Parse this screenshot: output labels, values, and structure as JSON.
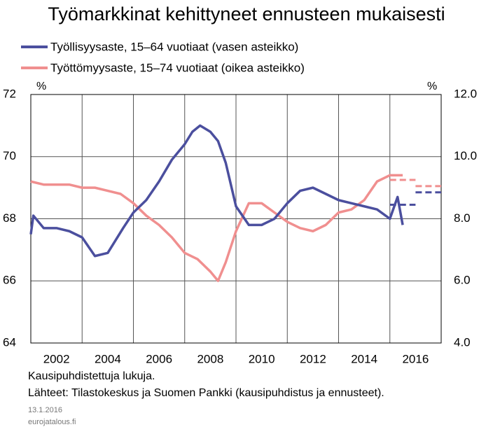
{
  "chart_data": {
    "type": "line",
    "title": "Työmarkkinat kehittyneet ennusteen mukaisesti",
    "y_unit": "%",
    "y2_unit": "%",
    "note": "Kausipuhdistettuja lukuja.",
    "source": "Lähteet:  Tilastokeskus ja Suomen Pankki (kausipuhdistus ja ennusteet).",
    "date": "13.1.2016",
    "site": "eurojatalous.fi",
    "xlim": [
      2001,
      2017
    ],
    "xticks": [
      2002,
      2004,
      2006,
      2008,
      2010,
      2012,
      2014,
      2016
    ],
    "xgrid": [
      2003,
      2005,
      2007,
      2009,
      2011,
      2013,
      2015
    ],
    "ylim": [
      64,
      72
    ],
    "yticks": [
      64,
      66,
      68,
      70,
      72
    ],
    "y2lim": [
      4,
      12
    ],
    "y2ticks": [
      {
        "value": 4,
        "label": "4.0"
      },
      {
        "value": 6,
        "label": "6.0"
      },
      {
        "value": 8,
        "label": "8.0"
      },
      {
        "value": 10,
        "label": "10.0"
      },
      {
        "value": 12,
        "label": "12.0"
      }
    ],
    "series": [
      {
        "name": "Työllisyysaste, 15–64 vuotiaat (vasen asteikko)",
        "color": "#4b4f9e",
        "x": [
          2001.0,
          2001.1,
          2001.5,
          2002.0,
          2002.5,
          2003.0,
          2003.5,
          2004.0,
          2004.3,
          2004.6,
          2005.0,
          2005.5,
          2006.0,
          2006.5,
          2007.0,
          2007.3,
          2007.6,
          2008.0,
          2008.3,
          2008.6,
          2009.0,
          2009.5,
          2010.0,
          2010.5,
          2011.0,
          2011.5,
          2012.0,
          2012.5,
          2013.0,
          2013.5,
          2014.0,
          2014.5,
          2015.0,
          2015.3,
          2015.5
        ],
        "values": [
          67.5,
          68.1,
          67.7,
          67.7,
          67.6,
          67.4,
          66.8,
          66.9,
          67.3,
          67.7,
          68.2,
          68.6,
          69.2,
          69.9,
          70.4,
          70.8,
          71.0,
          70.8,
          70.5,
          69.8,
          68.4,
          67.8,
          67.8,
          68.0,
          68.5,
          68.9,
          69.0,
          68.8,
          68.6,
          68.5,
          68.4,
          68.3,
          68.0,
          68.7,
          67.8
        ],
        "forecast_x": [
          2015,
          2016
        ],
        "forecast_values": [
          68.45,
          68.85
        ]
      },
      {
        "name": "Työttömyysaste, 15–74 vuotiaat (oikea asteikko)",
        "color": "#f08f8f",
        "axis": "y2",
        "x": [
          2001.0,
          2001.5,
          2002.0,
          2002.5,
          2003.0,
          2003.5,
          2004.0,
          2004.5,
          2005.0,
          2005.5,
          2006.0,
          2006.5,
          2007.0,
          2007.5,
          2008.0,
          2008.3,
          2008.6,
          2009.0,
          2009.5,
          2010.0,
          2010.5,
          2011.0,
          2011.5,
          2012.0,
          2012.5,
          2013.0,
          2013.5,
          2014.0,
          2014.5,
          2015.0,
          2015.5
        ],
        "values": [
          9.2,
          9.1,
          9.1,
          9.1,
          9.0,
          9.0,
          8.9,
          8.8,
          8.5,
          8.1,
          7.8,
          7.4,
          6.9,
          6.7,
          6.3,
          6.0,
          6.6,
          7.6,
          8.5,
          8.5,
          8.2,
          7.9,
          7.7,
          7.6,
          7.8,
          8.2,
          8.3,
          8.6,
          9.2,
          9.4,
          9.4
        ],
        "forecast_x": [
          2015,
          2016
        ],
        "forecast_values": [
          9.25,
          9.05
        ]
      }
    ]
  }
}
